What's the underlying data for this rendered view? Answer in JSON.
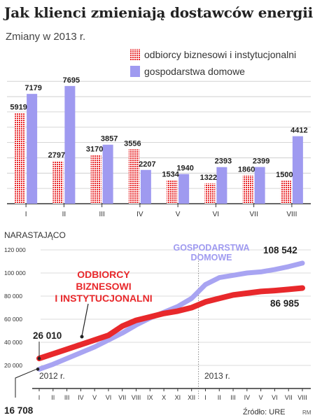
{
  "header": {
    "title": "Jak klienci zmieniają dostawców energii",
    "subtitle": "Zmiany w 2013 r."
  },
  "colors": {
    "business": "#e8282b",
    "households": "#9f9af0",
    "business_line": "#e8282b",
    "households_line": "#a8a4f2",
    "text": "#333333"
  },
  "chart_data": [
    {
      "type": "bar",
      "categories": [
        "I",
        "II",
        "III",
        "IV",
        "V",
        "VI",
        "VII",
        "VIII"
      ],
      "series": [
        {
          "name": "odbiorcy biznesowi i instytucjonalni",
          "pattern": "red-dots",
          "values": [
            5919,
            2797,
            3170,
            3556,
            1534,
            1322,
            1860,
            1500
          ]
        },
        {
          "name": "gospodarstwa domowe",
          "pattern": "solid-purple",
          "values": [
            7179,
            7695,
            3857,
            2207,
            1940,
            2393,
            2399,
            4412
          ]
        }
      ],
      "ylim": [
        0,
        9000
      ],
      "grid": true,
      "legend_position": "top-right"
    },
    {
      "type": "line",
      "title": "NARASTAJĄCO",
      "x": [
        "I",
        "II",
        "III",
        "IV",
        "V",
        "VI",
        "VII",
        "VIII",
        "IX",
        "X",
        "XI",
        "XII",
        "I",
        "II",
        "III",
        "IV",
        "V",
        "VI",
        "VII",
        "VIII"
      ],
      "year_labels": [
        "2012 r.",
        "2013 r."
      ],
      "yticks": [
        0,
        20000,
        40000,
        60000,
        80000,
        100000,
        120000
      ],
      "ytick_labels": [
        "",
        "20 000",
        "40 000",
        "60 000",
        "80 000",
        "100 000",
        "120 000"
      ],
      "ylim": [
        0,
        120000
      ],
      "grid": true,
      "series": [
        {
          "name": "ODBIORCY BIZNESOWI I INSTYTUCJONALNI",
          "label_lines": [
            "ODBIORCY",
            "BIZNESOWI",
            "I INSTYTUCJONALNI"
          ],
          "start_label": "26 010",
          "end_label": "86 985",
          "values": [
            26010,
            30000,
            34000,
            38000,
            42000,
            46000,
            54000,
            59000,
            62000,
            65000,
            67000,
            70000,
            75000,
            78000,
            81000,
            82500,
            84000,
            84800,
            85800,
            86985
          ]
        },
        {
          "name": "GOSPODARSTWA DOMOWE",
          "label_lines": [
            "GOSPODARSTWA",
            "DOMOWE"
          ],
          "start_label": "16 708",
          "end_label": "108 542",
          "values": [
            16708,
            21000,
            26000,
            31000,
            36000,
            42000,
            48000,
            55000,
            61000,
            66000,
            71000,
            78000,
            90000,
            96000,
            98000,
            100000,
            101000,
            103000,
            105500,
            108542
          ]
        }
      ]
    }
  ],
  "footer": {
    "source": "Źródło: URE",
    "credit": "RM"
  }
}
